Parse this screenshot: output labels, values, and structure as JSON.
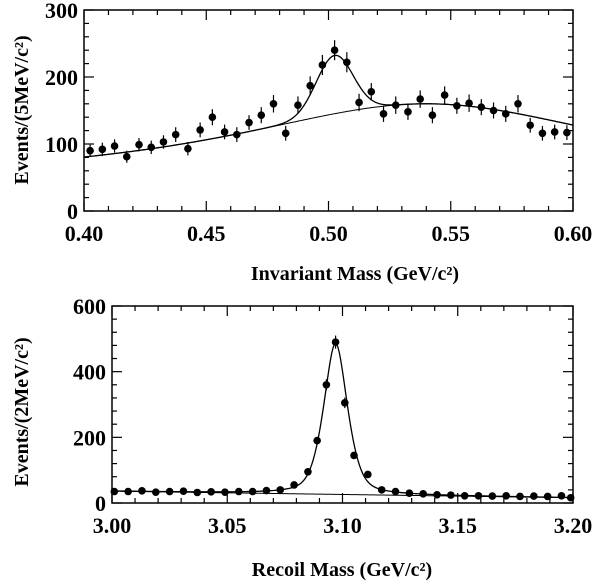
{
  "chart_data": [
    {
      "type": "scatter",
      "panel": "top",
      "xlabel": "Invariant Mass (GeV/c²)",
      "ylabel": "Events/(5MeV/c²)",
      "xlim": [
        0.4,
        0.6
      ],
      "ylim": [
        0,
        300
      ],
      "xticks": [
        0.4,
        0.45,
        0.5,
        0.55,
        0.6
      ],
      "xtick_labels": [
        "0.40",
        "0.45",
        "0.50",
        "0.55",
        "0.60"
      ],
      "yticks": [
        0,
        100,
        200,
        300
      ],
      "ytick_labels": [
        "0",
        "100",
        "200",
        "300"
      ],
      "grid": false,
      "series": [
        {
          "x": [
            0.4025,
            0.4075,
            0.4125,
            0.4175,
            0.4225,
            0.4275,
            0.4325,
            0.4375,
            0.4425,
            0.4475,
            0.4525,
            0.4575,
            0.4625,
            0.4675,
            0.4725,
            0.4775,
            0.4825,
            0.4875,
            0.4925,
            0.4975,
            0.5025,
            0.5075,
            0.5125,
            0.5175,
            0.5225,
            0.5275,
            0.5325,
            0.5375,
            0.5425,
            0.5475,
            0.5525,
            0.5575,
            0.5625,
            0.5675,
            0.5725,
            0.5775,
            0.5825,
            0.5875,
            0.5925,
            0.5975
          ],
          "y": [
            90,
            92,
            97,
            81,
            99,
            95,
            103,
            114,
            93,
            121,
            140,
            118,
            114,
            132,
            143,
            160,
            116,
            158,
            187,
            218,
            240,
            222,
            162,
            178,
            145,
            158,
            148,
            167,
            143,
            173,
            157,
            161,
            155,
            150,
            145,
            160,
            128,
            116,
            118,
            117
          ],
          "errors": [
            9,
            10,
            10,
            9,
            10,
            10,
            10,
            11,
            10,
            11,
            12,
            11,
            11,
            11,
            12,
            13,
            11,
            13,
            14,
            15,
            15,
            15,
            13,
            13,
            12,
            13,
            12,
            13,
            12,
            13,
            12,
            13,
            12,
            12,
            12,
            13,
            11,
            11,
            11,
            11
          ]
        }
      ],
      "fit": {
        "background": {
          "x0": 0.54,
          "peak": 160,
          "width": 0.1,
          "floor": 40
        },
        "signal": {
          "mean": 0.5025,
          "sigma": 0.0075,
          "amplitude": 87
        }
      }
    },
    {
      "type": "scatter",
      "panel": "bottom",
      "xlabel": "Recoil Mass (GeV/c²)",
      "ylabel": "Events/(2MeV/c²)",
      "xlim": [
        3.0,
        3.2
      ],
      "ylim": [
        0,
        600
      ],
      "xticks": [
        3.0,
        3.05,
        3.1,
        3.15,
        3.2
      ],
      "xtick_labels": [
        "3.00",
        "3.05",
        "3.10",
        "3.15",
        "3.20"
      ],
      "yticks": [
        0,
        200,
        400,
        600
      ],
      "ytick_labels": [
        "0",
        "200",
        "400",
        "600"
      ],
      "grid": false,
      "series": [
        {
          "x": [
            3.001,
            3.007,
            3.013,
            3.019,
            3.025,
            3.031,
            3.037,
            3.043,
            3.049,
            3.055,
            3.061,
            3.067,
            3.073,
            3.079,
            3.085,
            3.089,
            3.093,
            3.097,
            3.101,
            3.105,
            3.111,
            3.117,
            3.123,
            3.129,
            3.135,
            3.141,
            3.147,
            3.153,
            3.159,
            3.165,
            3.171,
            3.177,
            3.183,
            3.189,
            3.195,
            3.199
          ],
          "y": [
            35,
            35,
            37,
            33,
            35,
            36,
            32,
            34,
            33,
            35,
            35,
            38,
            40,
            55,
            95,
            190,
            360,
            490,
            305,
            145,
            87,
            40,
            35,
            30,
            28,
            25,
            24,
            22,
            22,
            21,
            22,
            20,
            21,
            20,
            22,
            16
          ],
          "errors": [
            5,
            5,
            5,
            5,
            5,
            5,
            5,
            5,
            5,
            5,
            5,
            5,
            6,
            7,
            9,
            12,
            17,
            20,
            16,
            11,
            8,
            5,
            5,
            5,
            5,
            4,
            4,
            4,
            4,
            4,
            4,
            4,
            4,
            4,
            4,
            4
          ]
        }
      ],
      "fit": {
        "background": {
          "intercept": 36,
          "slope": -100
        },
        "signal": {
          "mean": 3.097,
          "sigma": 0.0055,
          "amplitude": 460
        }
      }
    }
  ]
}
